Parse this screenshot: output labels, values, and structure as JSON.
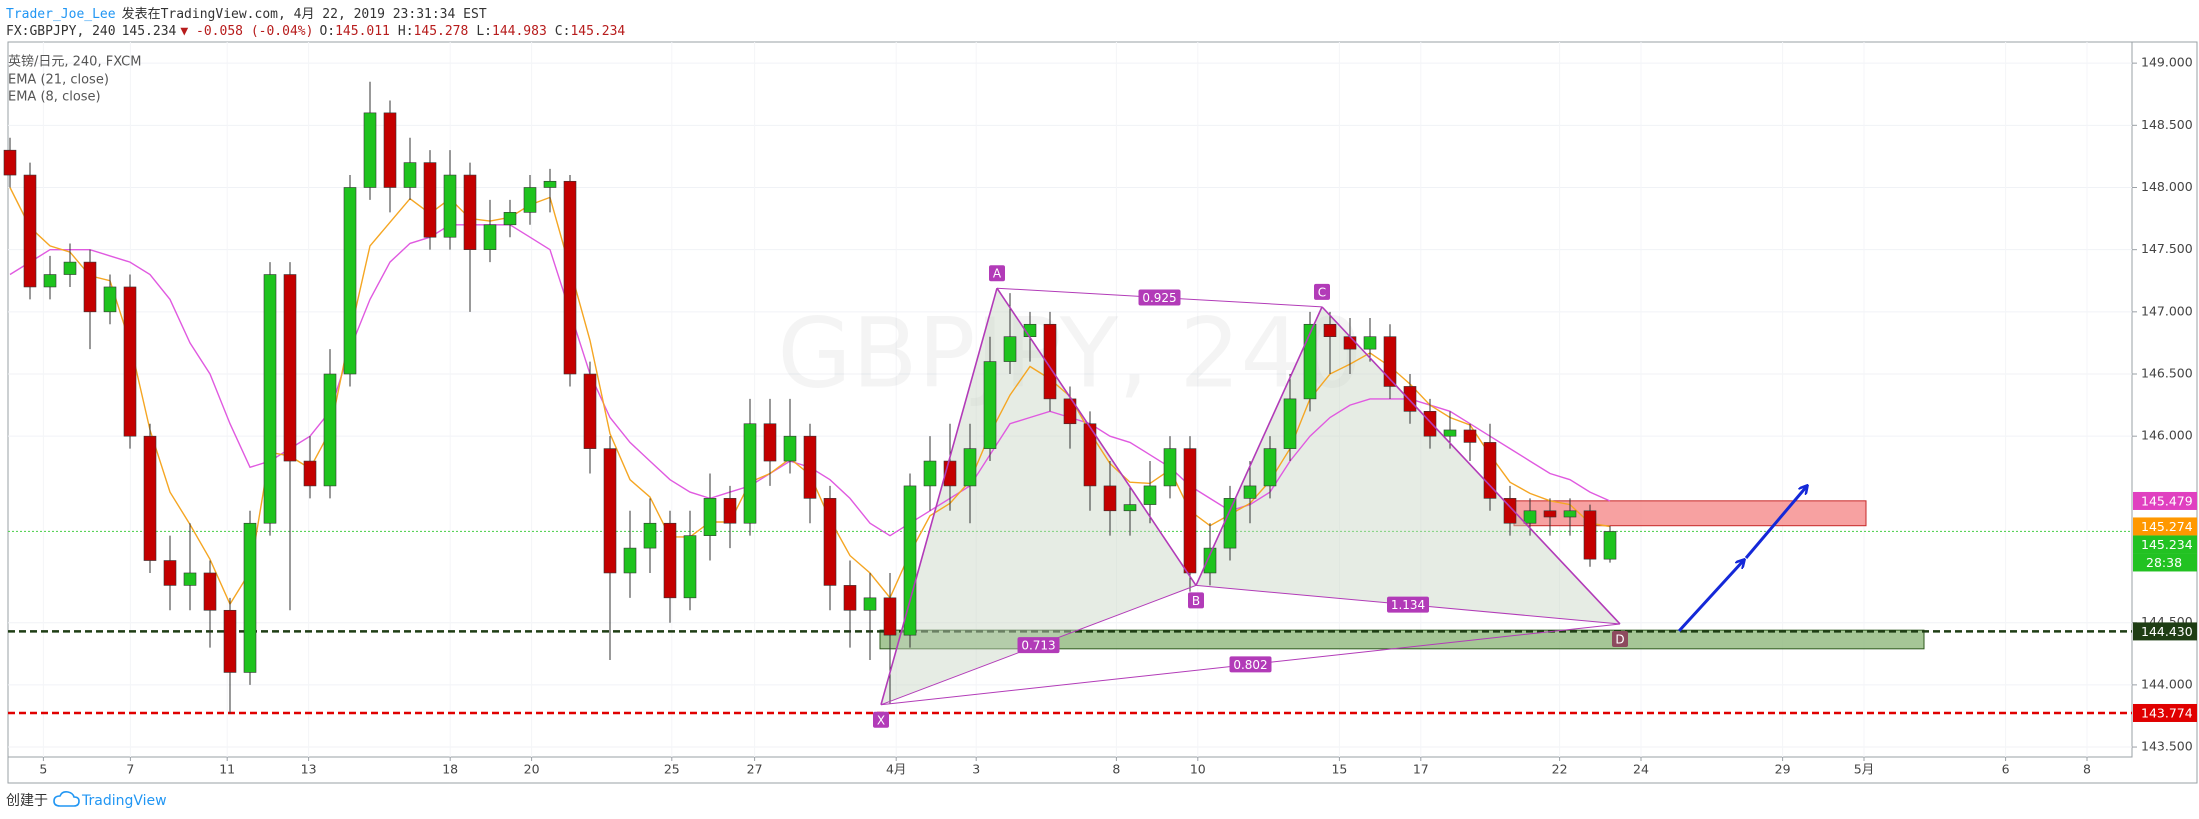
{
  "header": {
    "author": "Trader_Joe_Lee",
    "published": "发表在TradingView.com, 4月 22, 2019 23:31:34 EST",
    "symbol": "FX:GBPJPY, 240",
    "last": "145.234",
    "change": "▼ -0.058 (-0.04%)",
    "ohlc": [
      {
        "label": "O:",
        "value": "145.011"
      },
      {
        "label": "H:",
        "value": "145.278"
      },
      {
        "label": "L:",
        "value": "144.983"
      },
      {
        "label": "C:",
        "value": "145.234"
      }
    ]
  },
  "footer": {
    "created": "创建于",
    "brand": "TradingView"
  },
  "chart_data": {
    "type": "candlestick",
    "watermark": "GBPJPY, 240",
    "legend_title": "英镑/日元, 240, FXCM",
    "xlim": [
      -0.1,
      106.1
    ],
    "ylim": [
      143.42,
      149.17
    ],
    "grid": true,
    "up_color": "#1ec31e",
    "down_color": "#c40000",
    "wick_color": "#333333",
    "xticks": [
      {
        "value": 1.67,
        "label": "5"
      },
      {
        "value": 6.02,
        "label": "7"
      },
      {
        "value": 10.86,
        "label": "11"
      },
      {
        "value": 14.93,
        "label": "13"
      },
      {
        "value": 22.01,
        "label": "18"
      },
      {
        "value": 26.08,
        "label": "20"
      },
      {
        "value": 33.09,
        "label": "25"
      },
      {
        "value": 37.23,
        "label": "27"
      },
      {
        "value": 44.31,
        "label": "4月"
      },
      {
        "value": 48.31,
        "label": "3"
      },
      {
        "value": 55.32,
        "label": "8"
      },
      {
        "value": 59.39,
        "label": "10"
      },
      {
        "value": 66.47,
        "label": "15"
      },
      {
        "value": 70.54,
        "label": "17"
      },
      {
        "value": 77.48,
        "label": "22"
      },
      {
        "value": 81.55,
        "label": "24"
      },
      {
        "value": 88.63,
        "label": "29"
      },
      {
        "value": 92.7,
        "label": "5月"
      },
      {
        "value": 99.78,
        "label": "6"
      },
      {
        "value": 103.85,
        "label": "8"
      }
    ],
    "yticks": [
      {
        "value": 143.5,
        "label": "143.500"
      },
      {
        "value": 144,
        "label": "144.000"
      },
      {
        "value": 144.5,
        "label": "144.500"
      },
      {
        "value": 146,
        "label": "146.000"
      },
      {
        "value": 146.5,
        "label": "146.500"
      },
      {
        "value": 147,
        "label": "147.000"
      },
      {
        "value": 147.5,
        "label": "147.500"
      },
      {
        "value": 148,
        "label": "148.000"
      },
      {
        "value": 148.5,
        "label": "148.500"
      },
      {
        "value": 149,
        "label": "149.000"
      }
    ],
    "candles": {
      "open": [
        148.3,
        148.1,
        147.2,
        147.3,
        147.4,
        147.0,
        147.2,
        146.0,
        145.0,
        144.8,
        144.9,
        144.6,
        144.1,
        145.3,
        147.3,
        145.8,
        145.6,
        146.5,
        148.0,
        148.6,
        148.0,
        148.2,
        147.6,
        148.1,
        147.5,
        147.7,
        147.8,
        148.0,
        148.05,
        146.5,
        145.9,
        144.9,
        145.1,
        145.3,
        144.7,
        145.2,
        145.5,
        145.3,
        146.1,
        145.8,
        146.0,
        145.5,
        144.8,
        144.6,
        144.7,
        144.4,
        145.6,
        145.8,
        145.6,
        145.9,
        146.6,
        146.8,
        146.9,
        146.3,
        146.1,
        145.6,
        145.4,
        145.45,
        145.6,
        145.9,
        144.9,
        145.1,
        145.5,
        145.6,
        145.9,
        146.3,
        146.9,
        146.8,
        146.7,
        146.8,
        146.4,
        146.2,
        146.0,
        146.05,
        145.95,
        145.5,
        145.3,
        145.4,
        145.35,
        145.4,
        145.011
      ],
      "high": [
        148.4,
        148.2,
        147.45,
        147.55,
        147.5,
        147.3,
        147.3,
        146.1,
        145.2,
        145.3,
        145.0,
        144.7,
        145.4,
        147.4,
        147.4,
        146.0,
        146.7,
        148.1,
        148.85,
        148.7,
        148.4,
        148.3,
        148.3,
        148.2,
        147.9,
        147.9,
        148.1,
        148.15,
        148.1,
        146.6,
        146.0,
        145.4,
        145.5,
        145.4,
        145.4,
        145.7,
        145.6,
        146.3,
        146.3,
        146.3,
        146.1,
        145.6,
        145.0,
        144.9,
        144.9,
        145.7,
        146.0,
        146.1,
        146.1,
        146.8,
        147.15,
        147.0,
        147.0,
        146.4,
        146.2,
        145.8,
        145.6,
        145.8,
        146.0,
        146.0,
        145.3,
        145.6,
        145.8,
        146.0,
        146.5,
        147.0,
        147.0,
        146.95,
        146.95,
        146.9,
        146.5,
        146.3,
        146.2,
        146.1,
        146.1,
        145.6,
        145.5,
        145.5,
        145.5,
        145.45,
        145.278
      ],
      "low": [
        148.0,
        147.1,
        147.1,
        147.2,
        146.7,
        146.9,
        145.9,
        144.9,
        144.6,
        144.6,
        144.3,
        143.77,
        144.0,
        145.2,
        144.6,
        145.5,
        145.5,
        146.4,
        147.9,
        147.8,
        147.9,
        147.5,
        147.5,
        147.0,
        147.4,
        147.6,
        147.7,
        147.8,
        146.4,
        145.7,
        144.2,
        144.7,
        144.9,
        144.5,
        144.6,
        145.0,
        145.1,
        145.2,
        145.6,
        145.7,
        145.3,
        144.6,
        144.3,
        144.2,
        143.85,
        144.3,
        145.4,
        145.4,
        145.3,
        145.8,
        146.5,
        146.6,
        146.2,
        145.9,
        145.4,
        145.2,
        145.2,
        145.3,
        145.5,
        144.75,
        144.8,
        145.0,
        145.3,
        145.5,
        145.8,
        146.2,
        146.5,
        146.5,
        146.6,
        146.3,
        146.1,
        145.9,
        145.9,
        145.8,
        145.4,
        145.2,
        145.2,
        145.2,
        145.2,
        144.95,
        144.983
      ],
      "close": [
        148.1,
        147.2,
        147.3,
        147.4,
        147.0,
        147.2,
        146.0,
        145.0,
        144.8,
        144.9,
        144.6,
        144.1,
        145.3,
        147.3,
        145.8,
        145.6,
        146.5,
        148.0,
        148.6,
        148.0,
        148.2,
        147.6,
        148.1,
        147.5,
        147.7,
        147.8,
        148.0,
        148.05,
        146.5,
        145.9,
        144.9,
        145.1,
        145.3,
        144.7,
        145.2,
        145.5,
        145.3,
        146.1,
        145.8,
        146.0,
        145.5,
        144.8,
        144.6,
        144.7,
        144.4,
        145.6,
        145.8,
        145.6,
        145.9,
        146.6,
        146.8,
        146.9,
        146.3,
        146.1,
        145.6,
        145.4,
        145.45,
        145.6,
        145.9,
        144.9,
        145.1,
        145.5,
        145.6,
        145.9,
        146.3,
        146.9,
        146.8,
        146.7,
        146.8,
        146.4,
        146.2,
        146.0,
        146.05,
        145.95,
        145.5,
        145.3,
        145.4,
        145.35,
        145.4,
        145.011,
        145.234
      ]
    },
    "series": [
      {
        "name": "EMA (21, close)",
        "color": "#e05ae0",
        "values": [
          147.3,
          147.4,
          147.5,
          147.5,
          147.5,
          147.45,
          147.4,
          147.3,
          147.1,
          146.75,
          146.5,
          146.1,
          145.75,
          145.8,
          145.9,
          146.0,
          146.2,
          146.7,
          147.1,
          147.4,
          147.55,
          147.6,
          147.7,
          147.7,
          147.7,
          147.7,
          147.6,
          147.5,
          147.0,
          146.5,
          146.15,
          145.95,
          145.8,
          145.65,
          145.55,
          145.5,
          145.55,
          145.6,
          145.7,
          145.8,
          145.75,
          145.65,
          145.5,
          145.3,
          145.2,
          145.3,
          145.4,
          145.5,
          145.6,
          145.85,
          146.1,
          146.15,
          146.2,
          146.15,
          146.1,
          146.0,
          145.95,
          145.85,
          145.75,
          145.6,
          145.5,
          145.4,
          145.45,
          145.55,
          145.8,
          146.0,
          146.15,
          146.25,
          146.3,
          146.3,
          146.3,
          146.25,
          146.2,
          146.1,
          146.0,
          145.9,
          145.8,
          145.7,
          145.65,
          145.55,
          145.479
        ]
      },
      {
        "name": "EMA (8, close)",
        "color": "#f5a623",
        "values": [
          148.0,
          147.68,
          147.53,
          147.48,
          147.29,
          147.25,
          146.75,
          146.05,
          145.55,
          145.29,
          145.01,
          144.65,
          144.91,
          145.87,
          145.84,
          145.74,
          146.04,
          146.82,
          147.53,
          147.72,
          147.91,
          147.79,
          147.91,
          147.75,
          147.73,
          147.76,
          147.86,
          147.92,
          147.35,
          146.77,
          146.02,
          145.65,
          145.51,
          145.19,
          145.19,
          145.31,
          145.31,
          145.63,
          145.7,
          145.82,
          145.69,
          145.33,
          145.04,
          144.9,
          144.7,
          145.06,
          145.36,
          145.46,
          145.64,
          146.02,
          146.33,
          146.56,
          146.46,
          146.32,
          146.03,
          145.78,
          145.63,
          145.62,
          145.73,
          145.4,
          145.28,
          145.37,
          145.46,
          145.64,
          145.9,
          146.3,
          146.5,
          146.58,
          146.67,
          146.56,
          146.42,
          146.25,
          146.15,
          146.09,
          145.85,
          145.63,
          145.54,
          145.48,
          145.45,
          145.3,
          145.274
        ]
      }
    ],
    "pattern": {
      "color": "#b23bb8",
      "fill": "#c8d5c4",
      "points": [
        {
          "label": "X",
          "x": 43.55,
          "y": 143.84
        },
        {
          "label": "A",
          "x": 49.35,
          "y": 147.19
        },
        {
          "label": "B",
          "x": 59.3,
          "y": 144.8
        },
        {
          "label": "C",
          "x": 65.6,
          "y": 147.04
        },
        {
          "label": "D",
          "x": 80.5,
          "y": 144.49
        }
      ],
      "ratios": [
        0.713,
        0.925,
        1.134,
        0.802
      ]
    },
    "zones": [
      {
        "x": [
          75.2,
          92.8
        ],
        "y": [
          145.28,
          145.48
        ],
        "color": "#f58a8a",
        "border": "#c62828"
      },
      {
        "x": [
          43.5,
          95.7
        ],
        "y": [
          144.29,
          144.44
        ],
        "color": "#8fb87c",
        "border": "#2e5a1e"
      }
    ],
    "hlines": [
      {
        "value": 144.43,
        "color": "#1e3d14",
        "style": "dashed"
      },
      {
        "value": 143.774,
        "color": "#e00000",
        "style": "dashed"
      },
      {
        "value": 145.234,
        "color": "#5bd35b",
        "style": "dotted"
      }
    ],
    "price_markers": [
      {
        "value": 145.479,
        "color": "#e040c0"
      },
      {
        "value": 145.274,
        "color": "#ff9800"
      },
      {
        "value": 145.234,
        "color": "#22c222",
        "countdown": "28:38"
      },
      {
        "value": 144.43,
        "label": "144.430",
        "color": "#1e3d14"
      },
      {
        "value": 143.774,
        "color": "#e00000"
      }
    ]
  }
}
